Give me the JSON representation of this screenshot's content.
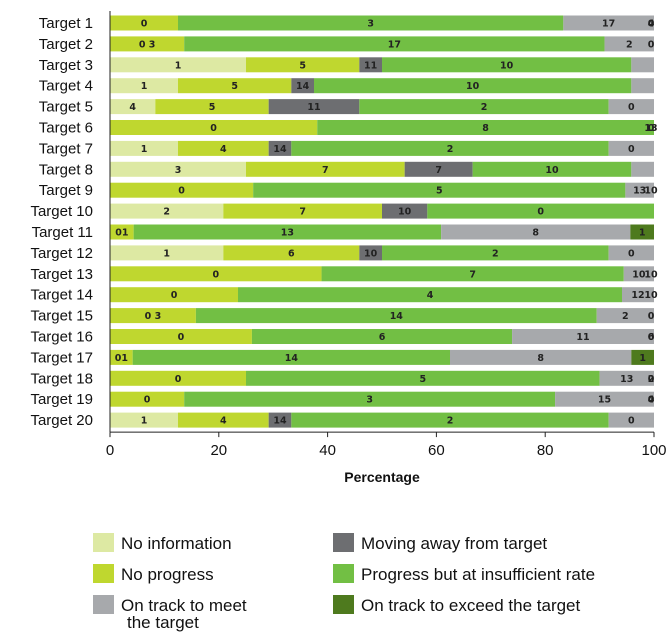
{
  "chart_data": {
    "type": "bar",
    "orientation": "horizontal",
    "stacked": true,
    "xlabel": "Percentage",
    "xlim": [
      0,
      100
    ],
    "xticks": [
      0,
      20,
      40,
      60,
      80,
      100
    ],
    "grid": false,
    "legend_position": "bottom",
    "categories": [
      "Target 1",
      "Target 2",
      "Target 3",
      "Target 4",
      "Target 5",
      "Target 6",
      "Target 7",
      "Target 8",
      "Target 9",
      "Target 10",
      "Target 11",
      "Target 12",
      "Target 13",
      "Target 14",
      "Target 15",
      "Target 16",
      "Target 17",
      "Target 18",
      "Target 19",
      "Target 20"
    ],
    "series": [
      {
        "name": "No information",
        "color": "#dde9a3",
        "label_color": "#222222",
        "values": [
          0,
          0,
          6,
          3,
          2,
          0,
          3,
          6,
          0,
          5,
          0,
          5,
          0,
          0,
          0,
          0,
          0,
          0,
          0,
          3
        ]
      },
      {
        "name": "No progress",
        "color": "#bfd72f",
        "label_color": "#222222",
        "values": [
          3,
          3,
          5,
          5,
          5,
          8,
          4,
          7,
          5,
          7,
          1,
          6,
          7,
          4,
          3,
          6,
          1,
          5,
          3,
          4
        ]
      },
      {
        "name": "Moving away from target",
        "color": "#6d6e71",
        "label_color": "#222222",
        "values": [
          0,
          0,
          1,
          1,
          4,
          0,
          1,
          3,
          0,
          2,
          0,
          1,
          0,
          0,
          0,
          0,
          0,
          0,
          0,
          1
        ]
      },
      {
        "name": "Progress but at insufficient rate",
        "color": "#72bf44",
        "label_color": "#222222",
        "values": [
          17,
          17,
          11,
          14,
          11,
          13,
          14,
          7,
          13,
          10,
          13,
          10,
          10,
          12,
          14,
          11,
          14,
          13,
          15,
          14
        ]
      },
      {
        "name": "On track to meet the target",
        "color": "#a7a9ac",
        "label_color": "#222222",
        "values": [
          4,
          2,
          1,
          1,
          2,
          0,
          2,
          1,
          1,
          0,
          8,
          2,
          1,
          1,
          2,
          6,
          8,
          2,
          4,
          2
        ]
      },
      {
        "name": "On track to exceed the target",
        "color": "#4e7a1e",
        "label_color": "#222222",
        "values": [
          0,
          0,
          0,
          0,
          0,
          0,
          0,
          0,
          0,
          0,
          1,
          0,
          0,
          0,
          0,
          0,
          1,
          0,
          0,
          0
        ]
      }
    ],
    "segment_labels": [
      [
        "0",
        "3",
        null,
        "17",
        "4",
        "0"
      ],
      [
        null,
        "0 3",
        null,
        "17",
        "2",
        "0"
      ],
      [
        null,
        null,
        "1",
        "5",
        "11",
        "10"
      ],
      [
        null,
        "1",
        "5",
        "14",
        "10",
        null
      ],
      [
        null,
        "4",
        "5",
        "11",
        "2",
        "0"
      ],
      [
        null,
        "0",
        "8",
        "13",
        null,
        "0"
      ],
      [
        null,
        "1",
        "4",
        "14",
        "2",
        "0"
      ],
      [
        null,
        "3",
        "7",
        "7",
        "10",
        null
      ],
      [
        null,
        "0",
        "5",
        "13",
        "10",
        null
      ],
      [
        null,
        "2",
        "7",
        "10",
        null,
        "0"
      ],
      [
        null,
        "01",
        "13",
        "8",
        "1",
        null
      ],
      [
        null,
        "1",
        "6",
        "10",
        "2",
        "0"
      ],
      [
        null,
        "0",
        "7",
        "10",
        "10",
        null
      ],
      [
        null,
        "0",
        "4",
        "12",
        "10",
        null
      ],
      [
        null,
        "0 3",
        "14",
        "2",
        "0",
        null
      ],
      [
        "0",
        "6",
        "11",
        "6",
        "0",
        null
      ],
      [
        "01",
        "14",
        "8",
        "1",
        null,
        null
      ],
      [
        null,
        "0",
        "5",
        "13",
        "2",
        "0"
      ],
      [
        null,
        "0",
        "3",
        "15",
        "4",
        "0"
      ],
      [
        null,
        "1",
        "4",
        "14",
        "2",
        "0"
      ]
    ],
    "legend": [
      {
        "label_lines": [
          "No information"
        ],
        "color": "#dde9a3"
      },
      {
        "label_lines": [
          "Moving away from target"
        ],
        "color": "#6d6e71"
      },
      {
        "label_lines": [
          "No progress"
        ],
        "color": "#bfd72f"
      },
      {
        "label_lines": [
          "Progress but at insufficient rate"
        ],
        "color": "#72bf44"
      },
      {
        "label_lines": [
          "On track to meet",
          "the target"
        ],
        "color": "#a7a9ac"
      },
      {
        "label_lines": [
          "On track to exceed the target"
        ],
        "color": "#4e7a1e"
      }
    ]
  }
}
